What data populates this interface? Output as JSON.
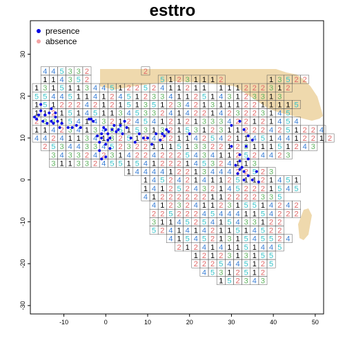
{
  "title": "esttro",
  "colors": {
    "land": "#efd9ad",
    "presence": "#0000e6",
    "absence": "#f4a3a3",
    "frame": "#000000",
    "cell_border": "#555555",
    "label_1": "#000000",
    "label_2": "#e06666",
    "label_3": "#5fb35f",
    "label_4": "#3a7fd6",
    "label_5": "#35c3c9"
  },
  "legend": {
    "position": "top-left",
    "items": [
      {
        "label": "presence",
        "color": "#0000e6"
      },
      {
        "label": "absence",
        "color": "#f4a3a3"
      }
    ]
  },
  "chart_data": {
    "type": "scatter",
    "title": "esttro",
    "xlim": [
      -18,
      52
    ],
    "ylim": [
      -32,
      38
    ],
    "x_ticks": [
      -10,
      0,
      10,
      20,
      30,
      40,
      50
    ],
    "y_ticks": [
      -30,
      -20,
      -10,
      0,
      10,
      20,
      30
    ],
    "grid": false,
    "grid_rows": [
      {
        "lat": 26,
        "lon_start": -14.5,
        "labels": "4453320000002"
      },
      {
        "lat": 24,
        "lon_start": -14.5,
        "labels": "114352000000005123111200000135220"
      },
      {
        "lat": 22,
        "lon_start": -16.5,
        "labels": "1315113445122524112110111222312"
      },
      {
        "lat": 20,
        "lon_start": -16.5,
        "labels": "554451141245123341125143123313"
      },
      {
        "lat": 18,
        "lon_start": -16.5,
        "labels": "15122242121513512342131112211115"
      },
      {
        "lat": 16,
        "lon_start": -16.5,
        "labels": "1121514511345332414221423223145"
      },
      {
        "lat": 14,
        "lon_start": -16.5,
        "labels": "23315414321245412121333422121454"
      },
      {
        "lat": 12,
        "lon_start": -16.5,
        "labels": "11423413435153132153123112224251224"
      },
      {
        "lat": 10,
        "lon_start": -16.5,
        "labels": "442411341325124221142542114514412212"
      },
      {
        "lat": 8,
        "lon_start": -14.5,
        "labels": "253443345232211151332212311151243"
      },
      {
        "lat": 6,
        "lon_start": -12.5,
        "labels": "34332423142242225434112524423"
      },
      {
        "lat": 4,
        "lon_start": -12.5,
        "labels": "3113324551541222145324113"
      },
      {
        "lat": 2,
        "lon_start": 5.5,
        "labels": "144441221344422523"
      },
      {
        "lat": 0,
        "lon_start": 9.5,
        "labels": "1452421411251121451"
      },
      {
        "lat": -2,
        "lon_start": 9.5,
        "labels": "1412524321452221545"
      },
      {
        "lat": -4,
        "lon_start": 9.5,
        "labels": "41222222112222335"
      },
      {
        "lat": -6,
        "lon_start": 11.5,
        "labels": "412324112315514242"
      },
      {
        "lat": -8,
        "lon_start": 11.5,
        "labels": "225222454441154222"
      },
      {
        "lat": -10,
        "lon_start": 11.5,
        "labels": "3114525415433122"
      },
      {
        "lat": -12,
        "lon_start": 11.5,
        "labels": "5241414211514522"
      },
      {
        "lat": -14,
        "lon_start": 15.5,
        "labels": "415452131545524"
      },
      {
        "lat": -16,
        "lon_start": 17.5,
        "labels": "2124141151445"
      },
      {
        "lat": -18,
        "lon_start": 21.5,
        "labels": "1212313155"
      },
      {
        "lat": -20,
        "lon_start": 21.5,
        "labels": "2225445125"
      },
      {
        "lat": -22,
        "lon_start": 23.5,
        "labels": "45312512"
      },
      {
        "lat": -24,
        "lon_start": 27.5,
        "labels": "152343"
      }
    ],
    "presence_points": [
      [
        -17,
        15
      ],
      [
        -16.5,
        14.5
      ],
      [
        -16,
        15.5
      ],
      [
        -15.5,
        16.5
      ],
      [
        -15,
        14
      ],
      [
        -14.5,
        15.5
      ],
      [
        -14,
        13.5
      ],
      [
        -13.5,
        16
      ],
      [
        -13,
        14
      ],
      [
        -12.5,
        13.5
      ],
      [
        -12,
        15
      ],
      [
        -11.5,
        14
      ],
      [
        -11,
        12.5
      ],
      [
        -10.5,
        13.5
      ],
      [
        -15.5,
        18
      ],
      [
        -13,
        17
      ],
      [
        -12,
        16
      ],
      [
        -9,
        12.5
      ],
      [
        -8,
        12.5
      ],
      [
        -7,
        13
      ],
      [
        -6,
        12.5
      ],
      [
        -4,
        14.5
      ],
      [
        -3.5,
        14.5
      ],
      [
        -3,
        14
      ],
      [
        -2,
        10.5
      ],
      [
        -1,
        10
      ],
      [
        -1,
        11
      ],
      [
        -0.5,
        12.5
      ],
      [
        0,
        12
      ],
      [
        0.5,
        11
      ],
      [
        1,
        10
      ],
      [
        1.5,
        12
      ],
      [
        2,
        13
      ],
      [
        2.5,
        11.5
      ],
      [
        3,
        12
      ],
      [
        3.5,
        13
      ],
      [
        4,
        11
      ],
      [
        4.5,
        14
      ],
      [
        5,
        12.5
      ],
      [
        -1.5,
        9
      ],
      [
        0,
        8.5
      ],
      [
        0.5,
        9.5
      ],
      [
        1,
        7.5
      ],
      [
        -1,
        5
      ],
      [
        0,
        5.5
      ],
      [
        -1.5,
        7
      ],
      [
        6,
        10
      ],
      [
        7,
        9
      ],
      [
        8,
        11
      ],
      [
        9,
        10
      ],
      [
        10,
        10
      ],
      [
        11,
        8.5
      ],
      [
        12,
        11
      ],
      [
        13,
        9.5
      ],
      [
        14,
        10.5
      ],
      [
        14.5,
        12
      ],
      [
        15,
        11.5
      ],
      [
        13.5,
        11
      ],
      [
        20,
        11
      ],
      [
        30,
        13
      ],
      [
        32,
        14
      ],
      [
        33,
        12
      ],
      [
        34,
        10.5
      ],
      [
        35,
        9.5
      ],
      [
        33.5,
        8
      ],
      [
        32,
        6
      ],
      [
        32,
        4.5
      ],
      [
        32.5,
        3
      ],
      [
        33,
        2
      ],
      [
        34,
        1
      ],
      [
        35,
        0
      ],
      [
        32,
        2.5
      ],
      [
        31,
        3.5
      ],
      [
        30,
        8
      ],
      [
        34,
        5
      ],
      [
        36,
        2
      ],
      [
        33,
        0
      ],
      [
        31.5,
        1.5
      ],
      [
        36.5,
        -0.5
      ]
    ]
  }
}
